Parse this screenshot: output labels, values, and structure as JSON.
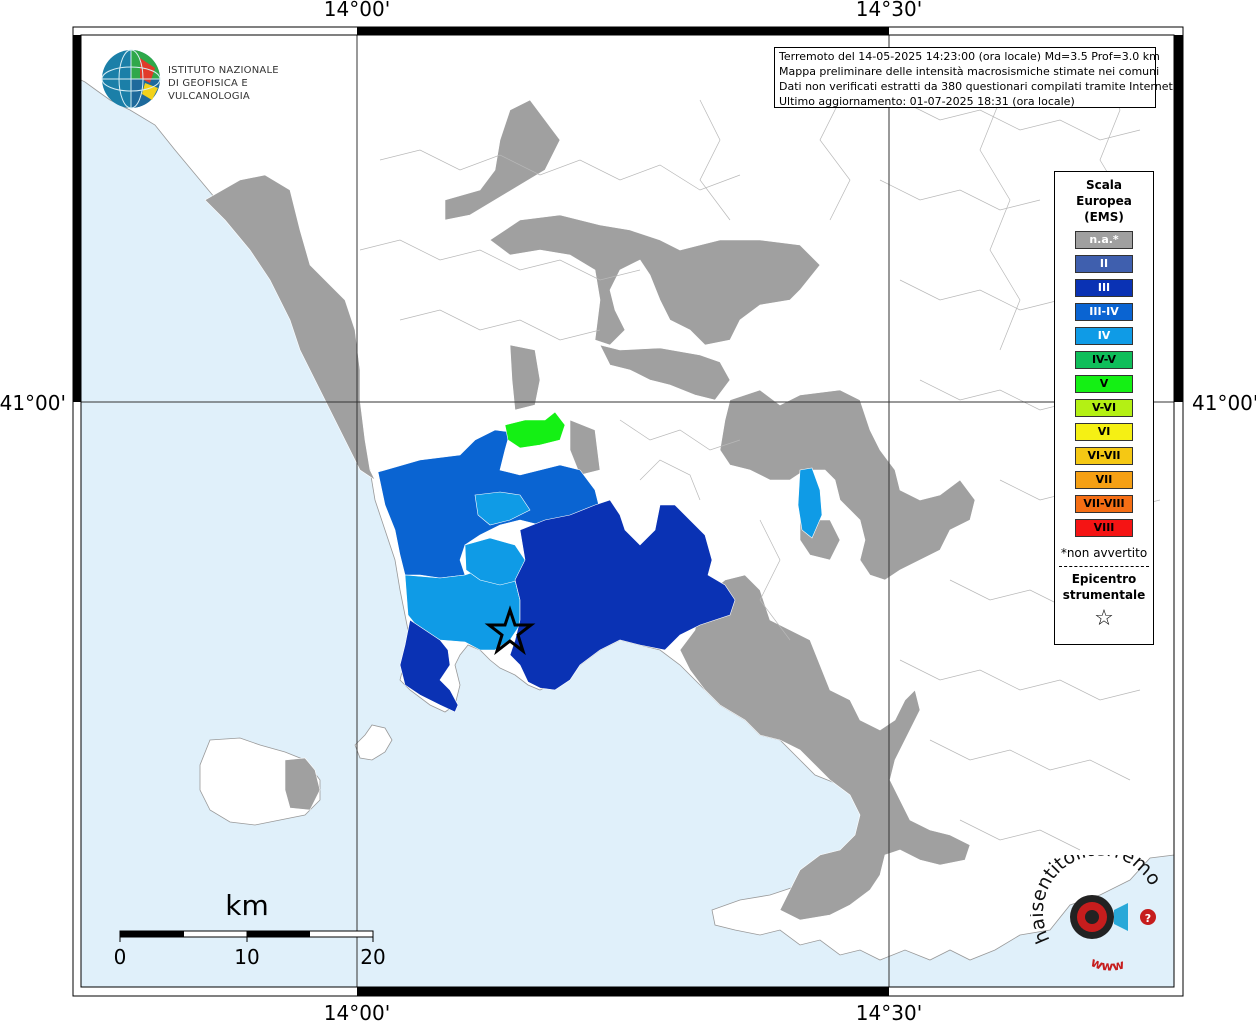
{
  "coords": {
    "lon_left": "14°00'",
    "lon_right": "14°30'",
    "lat": "41°00'"
  },
  "logo": {
    "line1": "ISTITUTO NAZIONALE",
    "line2": "DI GEOFISICA E VULCANOLOGIA"
  },
  "info": {
    "line1": "Terremoto del 14-05-2025 14:23:00 (ora locale) Md=3.5 Prof=3.0 km",
    "line2": "Mappa preliminare delle intensità macrosismiche stimate nei comuni",
    "line3": "Dati non verificati estratti da 380 questionari compilati tramite Internet.",
    "line4": "Ultimo aggiornamento: 01-07-2025 18:31 (ora locale)"
  },
  "legend": {
    "title1": "Scala",
    "title2": "Europea",
    "title3": "(EMS)",
    "items": [
      {
        "label": "n.a.*",
        "color": "#a0a0a0",
        "text": "#ffffff"
      },
      {
        "label": "II",
        "color": "#3f5fae",
        "text": "#ffffff"
      },
      {
        "label": "III",
        "color": "#0a32b4",
        "text": "#ffffff"
      },
      {
        "label": "III-IV",
        "color": "#0a64d2",
        "text": "#ffffff"
      },
      {
        "label": "IV",
        "color": "#0f9be6",
        "text": "#ffffff"
      },
      {
        "label": "IV-V",
        "color": "#0fbe5a",
        "text": "#000000"
      },
      {
        "label": "V",
        "color": "#14f014",
        "text": "#000000"
      },
      {
        "label": "V-VI",
        "color": "#b4f014",
        "text": "#000000"
      },
      {
        "label": "VI",
        "color": "#f5f014",
        "text": "#000000"
      },
      {
        "label": "VI-VII",
        "color": "#f5c814",
        "text": "#000000"
      },
      {
        "label": "VII",
        "color": "#f5a014",
        "text": "#000000"
      },
      {
        "label": "VII-VIII",
        "color": "#f56e14",
        "text": "#000000"
      },
      {
        "label": "VIII",
        "color": "#f51414",
        "text": "#000000"
      }
    ],
    "note": "*non avvertito",
    "epi1": "Epicentro",
    "epi2": "strumentale",
    "star": "☆"
  },
  "scalebar": {
    "unit": "km",
    "ticks": [
      "0",
      "10",
      "20"
    ]
  },
  "colors": {
    "sea": "#e0f0fa",
    "land": "#ffffff",
    "na": "#a0a0a0",
    "iii": "#0a32b4",
    "iii_iv": "#0a64d2",
    "iv": "#0f9be6",
    "v": "#14f014"
  },
  "watermark": {
    "text": "haisentitoilterremoto.it",
    "url": "www"
  }
}
